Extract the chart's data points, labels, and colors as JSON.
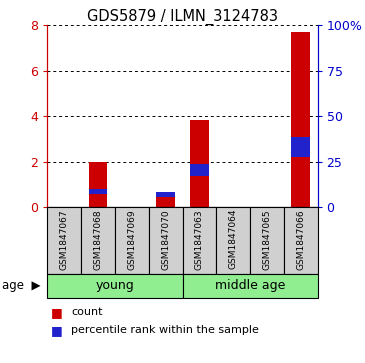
{
  "title": "GDS5879 / ILMN_3124783",
  "samples": [
    "GSM1847067",
    "GSM1847068",
    "GSM1847069",
    "GSM1847070",
    "GSM1847063",
    "GSM1847064",
    "GSM1847065",
    "GSM1847066"
  ],
  "count_values": [
    0.0,
    2.0,
    0.0,
    0.65,
    3.85,
    0.0,
    0.0,
    7.7
  ],
  "percentile_values": [
    0.0,
    0.22,
    0.0,
    0.22,
    0.55,
    0.0,
    0.0,
    0.88
  ],
  "pct_bottom": [
    0.0,
    0.55,
    0.0,
    0.43,
    1.35,
    0.0,
    0.0,
    2.2
  ],
  "groups": [
    {
      "label": "young",
      "start": 0,
      "end": 3,
      "color": "#90EE90"
    },
    {
      "label": "middle age",
      "start": 4,
      "end": 7,
      "color": "#90EE90"
    }
  ],
  "ylim_left": [
    0,
    8
  ],
  "ylim_right": [
    0,
    100
  ],
  "yticks_left": [
    0,
    2,
    4,
    6,
    8
  ],
  "yticks_right": [
    0,
    25,
    50,
    75,
    100
  ],
  "left_tick_labels": [
    "0",
    "2",
    "4",
    "6",
    "8"
  ],
  "right_tick_labels": [
    "0",
    "25",
    "50",
    "75",
    "100%"
  ],
  "left_color": "#cc0000",
  "right_color": "#0000cc",
  "bar_red_color": "#cc0000",
  "bar_blue_color": "#2222cc",
  "bar_width": 0.55,
  "sample_box_color": "#d0d0d0",
  "legend_count_label": "count",
  "legend_pct_label": "percentile rank within the sample",
  "age_label": "age",
  "arrow_color": "#888888"
}
